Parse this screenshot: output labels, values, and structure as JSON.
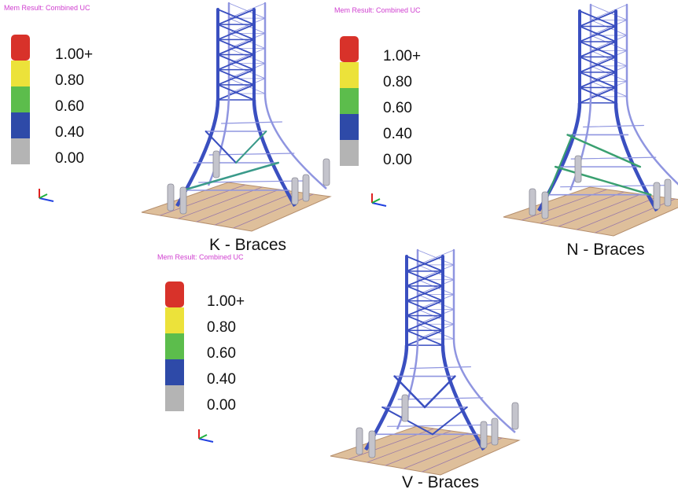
{
  "panels": [
    {
      "header": "Mem Result: Combined UC",
      "caption": "K -  Braces",
      "legend": [
        {
          "label": "1.00+",
          "color": "#d8322a"
        },
        {
          "label": "0.80",
          "color": "#ece23a"
        },
        {
          "label": "0.60",
          "color": "#5cbd4c"
        },
        {
          "label": "0.40",
          "color": "#2e4aa8"
        },
        {
          "label": "0.00",
          "color": "#b4b4b4"
        }
      ]
    },
    {
      "header": "Mem Result: Combined UC",
      "caption": "N -  Braces",
      "legend": [
        {
          "label": "1.00+",
          "color": "#d8322a"
        },
        {
          "label": "0.80",
          "color": "#ece23a"
        },
        {
          "label": "0.60",
          "color": "#5cbd4c"
        },
        {
          "label": "0.40",
          "color": "#2e4aa8"
        },
        {
          "label": "0.00",
          "color": "#b4b4b4"
        }
      ]
    },
    {
      "header": "Mem Result: Combined UC",
      "caption": "V -  Braces",
      "legend": [
        {
          "label": "1.00+",
          "color": "#d8322a"
        },
        {
          "label": "0.80",
          "color": "#ece23a"
        },
        {
          "label": "0.60",
          "color": "#5cbd4c"
        },
        {
          "label": "0.40",
          "color": "#2e4aa8"
        },
        {
          "label": "0.00",
          "color": "#b4b4b4"
        }
      ]
    }
  ]
}
